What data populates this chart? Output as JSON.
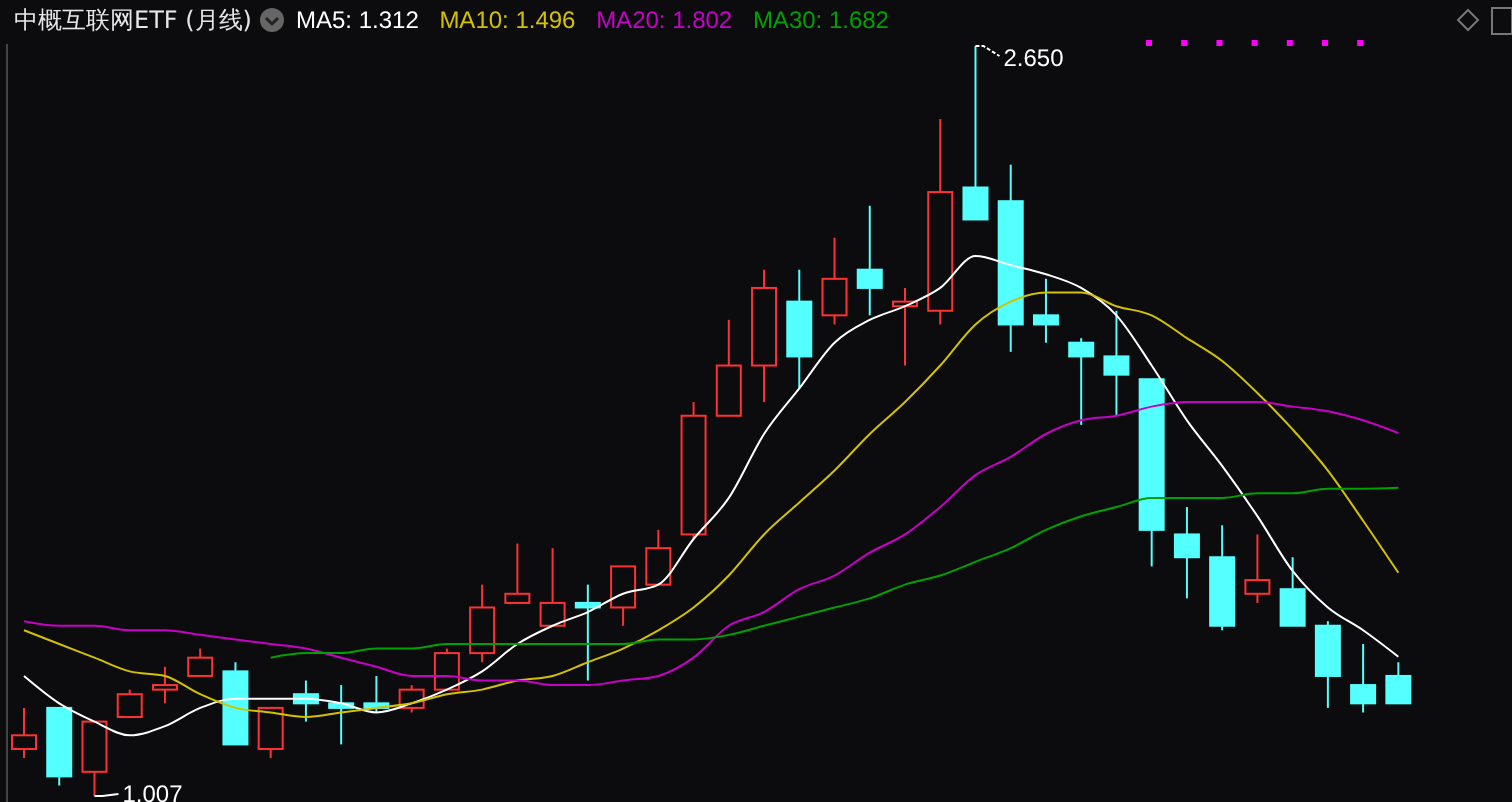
{
  "chart_data": {
    "type": "candlestick",
    "title": "中概互联网ETF (月线)",
    "categories": [
      null,
      null,
      null,
      null,
      null,
      null,
      null,
      null,
      null,
      null,
      null,
      null,
      null,
      null,
      null,
      null,
      null,
      null,
      null,
      null,
      null,
      null,
      null,
      null,
      null,
      null,
      null,
      null,
      null,
      null,
      null,
      null,
      null,
      null,
      null,
      null,
      null,
      null,
      null,
      null
    ],
    "ohlc": [
      [
        1.11,
        1.2,
        1.09,
        1.14
      ],
      [
        1.2,
        1.2,
        1.03,
        1.05
      ],
      [
        1.06,
        1.17,
        1.007,
        1.17
      ],
      [
        1.18,
        1.24,
        1.18,
        1.23
      ],
      [
        1.24,
        1.29,
        1.21,
        1.25
      ],
      [
        1.27,
        1.33,
        1.27,
        1.31
      ],
      [
        1.28,
        1.3,
        1.12,
        1.12
      ],
      [
        1.11,
        1.2,
        1.09,
        1.2
      ],
      [
        1.23,
        1.26,
        1.17,
        1.21
      ],
      [
        1.21,
        1.25,
        1.12,
        1.2
      ],
      [
        1.21,
        1.27,
        1.19,
        1.2
      ],
      [
        1.2,
        1.25,
        1.19,
        1.24
      ],
      [
        1.24,
        1.33,
        1.24,
        1.32
      ],
      [
        1.32,
        1.47,
        1.3,
        1.42
      ],
      [
        1.43,
        1.56,
        1.43,
        1.45
      ],
      [
        1.38,
        1.55,
        1.38,
        1.43
      ],
      [
        1.43,
        1.47,
        1.26,
        1.42
      ],
      [
        1.42,
        1.51,
        1.38,
        1.51
      ],
      [
        1.47,
        1.59,
        1.47,
        1.55
      ],
      [
        1.58,
        1.87,
        1.57,
        1.84
      ],
      [
        1.84,
        2.05,
        1.84,
        1.95
      ],
      [
        1.95,
        2.16,
        1.87,
        2.12
      ],
      [
        2.09,
        2.16,
        1.9,
        1.97
      ],
      [
        2.06,
        2.23,
        2.04,
        2.14
      ],
      [
        2.16,
        2.3,
        2.06,
        2.12
      ],
      [
        2.08,
        2.12,
        1.95,
        2.09
      ],
      [
        2.07,
        2.49,
        2.04,
        2.33
      ],
      [
        2.34,
        2.65,
        2.27,
        2.27
      ],
      [
        2.31,
        2.39,
        1.98,
        2.04
      ],
      [
        2.06,
        2.14,
        2.0,
        2.04
      ],
      [
        2.0,
        2.01,
        1.82,
        1.97
      ],
      [
        1.97,
        2.07,
        1.84,
        1.93
      ],
      [
        1.92,
        1.92,
        1.51,
        1.59
      ],
      [
        1.58,
        1.64,
        1.44,
        1.53
      ],
      [
        1.53,
        1.6,
        1.37,
        1.38
      ],
      [
        1.45,
        1.58,
        1.43,
        1.48
      ],
      [
        1.46,
        1.53,
        1.38,
        1.38
      ],
      [
        1.38,
        1.39,
        1.2,
        1.27
      ],
      [
        1.25,
        1.34,
        1.19,
        1.21
      ],
      [
        1.27,
        1.3,
        1.21,
        1.21
      ]
    ],
    "colors": [
      "#ff3232",
      "#54ffff",
      "#ff3232",
      "#ff3232",
      "#ff3232",
      "#ff3232",
      "#54ffff",
      "#ff3232",
      "#54ffff",
      "#54ffff",
      "#54ffff",
      "#ff3232",
      "#ff3232",
      "#ff3232",
      "#ff3232",
      "#ff3232",
      "#54ffff",
      "#ff3232",
      "#ff3232",
      "#ff3232",
      "#ff3232",
      "#ff3232",
      "#54ffff",
      "#ff3232",
      "#54ffff",
      "#ff3232",
      "#ff3232",
      "#54ffff",
      "#54ffff",
      "#54ffff",
      "#54ffff",
      "#54ffff",
      "#54ffff",
      "#54ffff",
      "#54ffff",
      "#ff3232",
      "#54ffff",
      "#54ffff",
      "#54ffff",
      "#54ffff"
    ],
    "series": [
      {
        "name": "MA5: 1.312",
        "type": "line",
        "color": "#ffffff",
        "values": [
          1.27,
          1.21,
          1.17,
          1.14,
          1.16,
          1.2,
          1.22,
          1.22,
          1.22,
          1.21,
          1.19,
          1.21,
          1.24,
          1.28,
          1.34,
          1.38,
          1.41,
          1.45,
          1.47,
          1.57,
          1.66,
          1.8,
          1.9,
          2.0,
          2.05,
          2.08,
          2.12,
          2.19,
          2.17,
          2.15,
          2.12,
          2.06,
          1.95,
          1.83,
          1.73,
          1.62,
          1.5,
          1.42,
          1.37,
          1.312
        ]
      },
      {
        "name": "MA10: 1.496",
        "type": "line",
        "color": "#d4c200",
        "values": [
          1.37,
          1.34,
          1.31,
          1.28,
          1.27,
          1.23,
          1.2,
          1.19,
          1.18,
          1.19,
          1.2,
          1.21,
          1.23,
          1.24,
          1.26,
          1.27,
          1.3,
          1.33,
          1.37,
          1.42,
          1.49,
          1.58,
          1.65,
          1.72,
          1.8,
          1.87,
          1.95,
          2.04,
          2.09,
          2.11,
          2.11,
          2.08,
          2.06,
          2.01,
          1.96,
          1.89,
          1.81,
          1.72,
          1.61,
          1.496
        ]
      },
      {
        "name": "MA20: 1.802",
        "type": "line",
        "color": "#c800c8",
        "values": [
          1.39,
          1.38,
          1.38,
          1.37,
          1.37,
          1.36,
          1.35,
          1.34,
          1.33,
          1.31,
          1.29,
          1.27,
          1.27,
          1.26,
          1.26,
          1.25,
          1.25,
          1.26,
          1.27,
          1.31,
          1.38,
          1.41,
          1.46,
          1.49,
          1.54,
          1.58,
          1.64,
          1.71,
          1.75,
          1.8,
          1.83,
          1.84,
          1.86,
          1.87,
          1.87,
          1.87,
          1.86,
          1.85,
          1.83,
          1.802
        ]
      },
      {
        "name": "MA30: 1.682",
        "type": "line",
        "color": "#00a000",
        "values": [
          null,
          null,
          null,
          null,
          null,
          null,
          null,
          1.31,
          1.32,
          1.32,
          1.33,
          1.33,
          1.34,
          1.34,
          1.34,
          1.34,
          1.34,
          1.34,
          1.35,
          1.35,
          1.36,
          1.38,
          1.4,
          1.42,
          1.44,
          1.47,
          1.49,
          1.52,
          1.55,
          1.59,
          1.62,
          1.64,
          1.66,
          1.66,
          1.66,
          1.67,
          1.67,
          1.68,
          1.68,
          1.682
        ]
      }
    ],
    "annotations": [
      "2.650",
      "1.007"
    ]
  }
}
